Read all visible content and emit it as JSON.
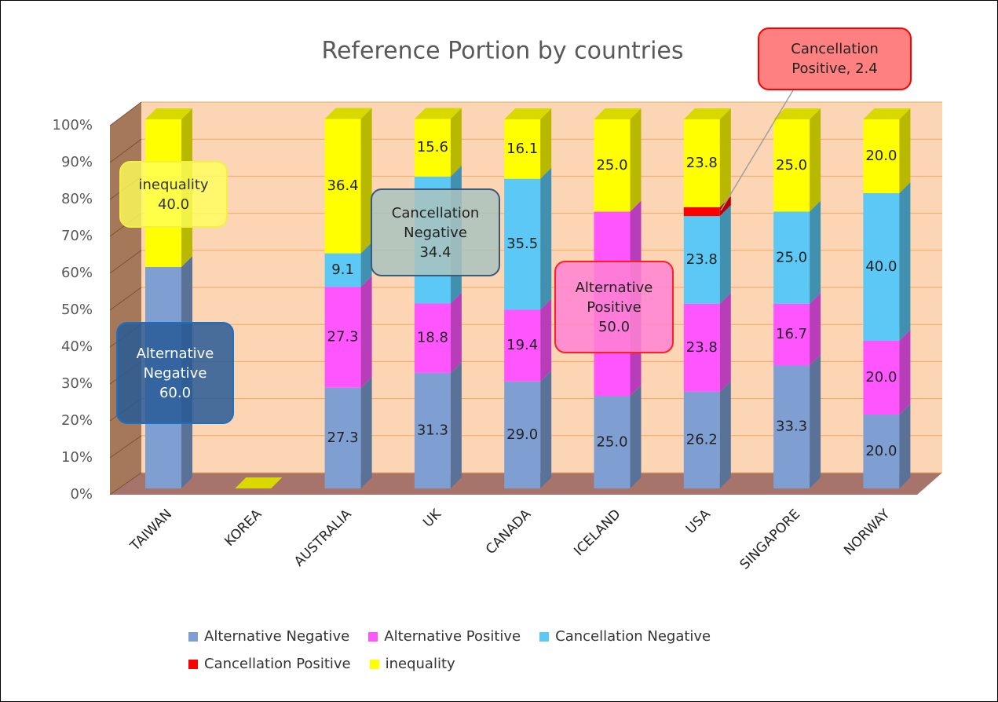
{
  "chart_data": {
    "type": "bar3d_stacked",
    "title": "Reference Portion by countries",
    "categories": [
      "TAIWAN",
      "KOREA",
      "AUSTRALIA",
      "UK",
      "CANADA",
      "ICELAND",
      "USA",
      "SINGAPORE",
      "NORWAY"
    ],
    "series": [
      {
        "name": "Alternative Negative",
        "color": "#7f9fd3",
        "values": [
          60.0,
          0,
          27.3,
          31.3,
          29.0,
          25.0,
          26.2,
          33.3,
          20.0
        ],
        "value_labels": [
          "60.0",
          null,
          "27.3",
          "31.3",
          "29.0",
          "25.0",
          "26.2",
          "33.3",
          "20.0"
        ]
      },
      {
        "name": "Alternative Positive",
        "color": "#ff55ff",
        "values": [
          0,
          0,
          27.3,
          18.8,
          19.4,
          50.0,
          23.8,
          16.7,
          20.0
        ],
        "value_labels": [
          null,
          null,
          "27.3",
          "18.8",
          "19.4",
          "50.0",
          "23.8",
          "16.7",
          "20.0"
        ]
      },
      {
        "name": "Cancellation Negative",
        "color": "#5bc8f5",
        "values": [
          0,
          0,
          9.1,
          34.4,
          35.5,
          0,
          23.8,
          25.0,
          40.0
        ],
        "value_labels": [
          null,
          null,
          "9.1",
          "34.4",
          "35.5",
          null,
          "23.8",
          "25.0",
          "40.0"
        ]
      },
      {
        "name": "Cancellation Positive",
        "color": "#ff0000",
        "values": [
          0,
          0,
          0,
          0,
          0,
          0,
          2.4,
          0,
          0
        ],
        "value_labels": [
          null,
          null,
          null,
          null,
          null,
          null,
          "Cancellation Positive, 2.4",
          null,
          null
        ]
      },
      {
        "name": "inequality",
        "color": "#ffff00",
        "values": [
          40.0,
          0,
          36.4,
          15.6,
          16.1,
          25.0,
          23.8,
          25.0,
          20.0
        ],
        "value_labels": [
          "40.0",
          null,
          "36.4",
          "15.6",
          "16.1",
          "25.0",
          "23.8",
          "25.0",
          "20.0"
        ]
      }
    ],
    "ylim": [
      0,
      100
    ],
    "yticks": [
      {
        "value": 0,
        "label": "0%"
      },
      {
        "value": 10,
        "label": "10%"
      },
      {
        "value": 20,
        "label": "20%"
      },
      {
        "value": 30,
        "label": "30%"
      },
      {
        "value": 40,
        "label": "40%"
      },
      {
        "value": 50,
        "label": "50%"
      },
      {
        "value": 60,
        "label": "60%"
      },
      {
        "value": 70,
        "label": "70%"
      },
      {
        "value": 80,
        "label": "80%"
      },
      {
        "value": 90,
        "label": "90%"
      },
      {
        "value": 100,
        "label": "100%"
      }
    ],
    "grid": true,
    "legend": "bottom"
  }
}
